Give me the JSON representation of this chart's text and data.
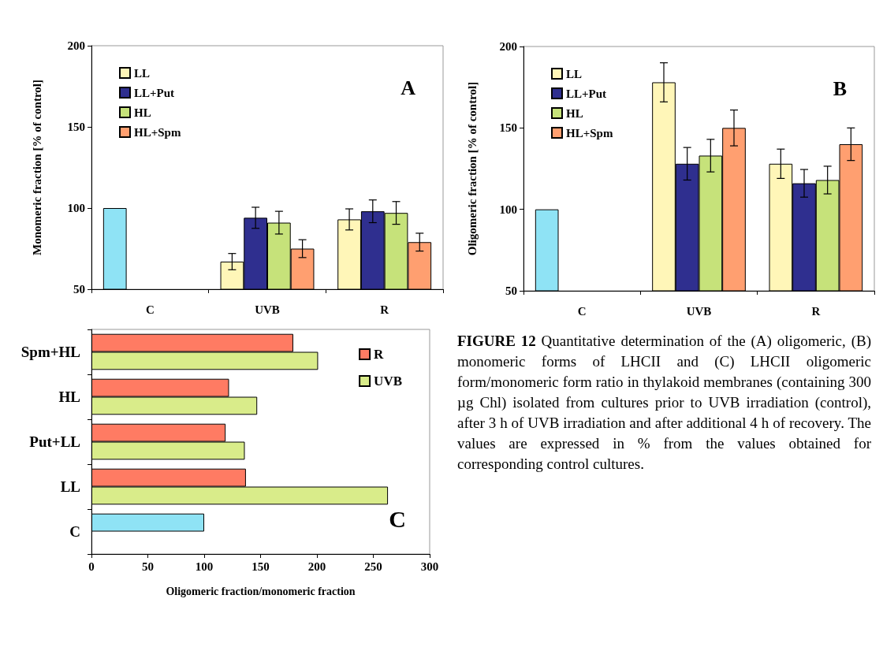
{
  "chart_data": [
    {
      "type": "bar",
      "ylabel": "Monomeric fraction [% of control]",
      "categories": [
        "C",
        "UVB",
        "R"
      ],
      "ylim": [
        50,
        200
      ],
      "yticks": [
        50,
        100,
        150,
        200
      ],
      "legend": "top left",
      "annotations": [
        "A"
      ],
      "series": [
        {
          "color": "#8fe3f5",
          "values": [
            100,
            null,
            null
          ]
        },
        {
          "name": "LL",
          "color": "#fff6b8",
          "values": [
            null,
            67,
            93
          ],
          "errors": [
            null,
            5,
            6.5
          ]
        },
        {
          "name": "LL+Put",
          "color": "#2f2f8f",
          "values": [
            null,
            94,
            98
          ],
          "errors": [
            null,
            6.5,
            7
          ]
        },
        {
          "name": "HL",
          "color": "#c6e27a",
          "values": [
            null,
            91,
            97
          ],
          "errors": [
            null,
            7,
            7
          ]
        },
        {
          "name": "HL+Spm",
          "color": "#ff9f70",
          "values": [
            null,
            75,
            79
          ],
          "errors": [
            null,
            5.5,
            5.5
          ]
        }
      ]
    },
    {
      "type": "bar",
      "ylabel": "Oligomeric fraction [% of control]",
      "categories": [
        "C",
        "UVB",
        "R"
      ],
      "ylim": [
        50,
        200
      ],
      "yticks": [
        50,
        100,
        150,
        200
      ],
      "legend": "top left",
      "annotations": [
        "B"
      ],
      "series": [
        {
          "color": "#8fe3f5",
          "values": [
            100,
            null,
            null
          ]
        },
        {
          "name": "LL",
          "color": "#fff6b8",
          "values": [
            null,
            178,
            128
          ],
          "errors": [
            null,
            12,
            9
          ]
        },
        {
          "name": "LL+Put",
          "color": "#2f2f8f",
          "values": [
            null,
            128,
            116
          ],
          "errors": [
            null,
            10,
            8.5
          ]
        },
        {
          "name": "HL",
          "color": "#c6e27a",
          "values": [
            null,
            133,
            118
          ],
          "errors": [
            null,
            10,
            8.5
          ]
        },
        {
          "name": "HL+Spm",
          "color": "#ff9f70",
          "values": [
            null,
            150,
            140
          ],
          "errors": [
            null,
            11,
            10
          ]
        }
      ]
    },
    {
      "type": "bar",
      "orientation": "horizontal",
      "xlabel": "Oligomeric fraction/monomeric fraction",
      "categories": [
        "Spm+HL",
        "HL",
        "Put+LL",
        "LL",
        "C"
      ],
      "xlim": [
        0,
        300
      ],
      "xticks": [
        0,
        50,
        100,
        150,
        200,
        250,
        300
      ],
      "legend": "top right",
      "annotations": [
        "C"
      ],
      "series": [
        {
          "name": "R",
          "color": "#ff7b63",
          "values": [
            179,
            122,
            119,
            137,
            null
          ]
        },
        {
          "name": "UVB",
          "color": "#d9ec8a",
          "values": [
            201,
            147,
            136,
            263,
            null
          ]
        },
        {
          "color": "#8fe3f5",
          "values": [
            null,
            null,
            null,
            null,
            100
          ]
        }
      ]
    },
    {
      "type": "other",
      "title": "FIGURE 12",
      "annotations": [
        "Quantitative determination of the (A) oligomeric, (B) monomeric forms of LHCII and (C) LHCII oligomeric form/monomeric form ratio in thylakoid membranes (containing 300 µg Chl) isolated from cultures prior to UVB irradiation (control), after 3 h of UVB irradiation and after additional 4 h of recovery. The values are expressed in % from the values obtained for corresponding control cultures."
      ]
    }
  ]
}
